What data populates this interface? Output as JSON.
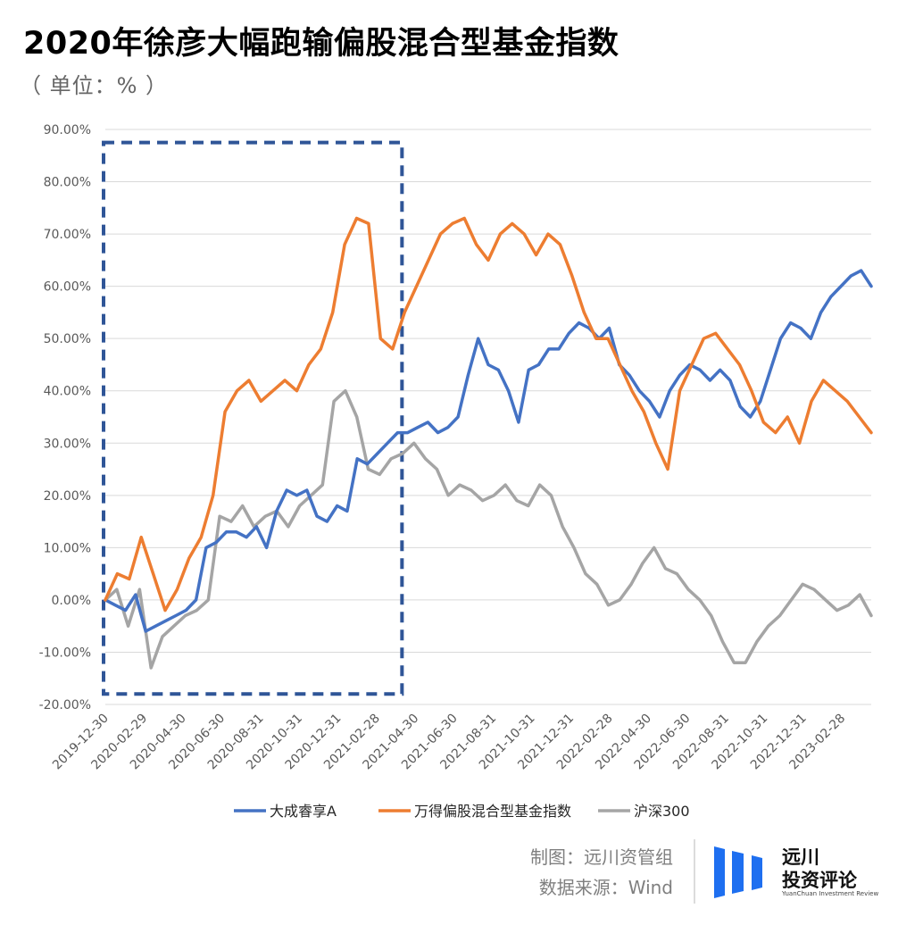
{
  "chart_data": {
    "type": "line",
    "title": "2020年徐彦大幅跑输偏股混合型基金指数",
    "unit_label": "（ 单位：% ）",
    "ylim": [
      -20,
      90
    ],
    "y_ticks": [
      "90.00%",
      "80.00%",
      "70.00%",
      "60.00%",
      "50.00%",
      "40.00%",
      "30.00%",
      "20.00%",
      "10.00%",
      "0.00%",
      "-10.00%",
      "-20.00%"
    ],
    "x_ticks": [
      "2019-12-30",
      "2020-02-29",
      "2020-04-30",
      "2020-06-30",
      "2020-08-31",
      "2020-10-31",
      "2020-12-31",
      "2021-02-28",
      "2021-04-30",
      "2021-06-30",
      "2021-08-31",
      "2021-10-31",
      "2021-12-31",
      "2022-02-28",
      "2022-04-30",
      "2022-06-30",
      "2022-08-31",
      "2022-10-31",
      "2022-12-31",
      "2023-02-28"
    ],
    "highlight_range": [
      "2019-12-30",
      "2021-02-28"
    ],
    "series": [
      {
        "name": "大成睿享A",
        "color": "#4472C4",
        "values": [
          0,
          -1,
          -2,
          1,
          -6,
          -5,
          -4,
          -3,
          -2,
          0,
          10,
          11,
          13,
          13,
          12,
          14,
          10,
          17,
          21,
          20,
          21,
          16,
          15,
          18,
          17,
          27,
          26,
          28,
          30,
          32,
          32,
          33,
          34,
          32,
          33,
          35,
          43,
          50,
          45,
          44,
          40,
          34,
          44,
          45,
          48,
          48,
          51,
          53,
          52,
          50,
          52,
          45,
          43,
          40,
          38,
          35,
          40,
          43,
          45,
          44,
          42,
          44,
          42,
          37,
          35,
          38,
          44,
          50,
          53,
          52,
          50,
          55,
          58,
          60,
          62,
          63,
          60
        ]
      },
      {
        "name": "万得偏股混合型基金指数",
        "color": "#ED7D31",
        "values": [
          0,
          5,
          4,
          12,
          5,
          -2,
          2,
          8,
          12,
          20,
          36,
          40,
          42,
          38,
          40,
          42,
          40,
          45,
          48,
          55,
          68,
          73,
          72,
          50,
          48,
          55,
          60,
          65,
          70,
          72,
          73,
          68,
          65,
          70,
          72,
          70,
          66,
          70,
          68,
          62,
          55,
          50,
          50,
          45,
          40,
          36,
          30,
          25,
          40,
          45,
          50,
          51,
          48,
          45,
          40,
          34,
          32,
          35,
          30,
          38,
          42,
          40,
          38,
          35,
          32
        ]
      },
      {
        "name": "沪深300",
        "color": "#A5A5A5",
        "values": [
          0,
          2,
          -5,
          2,
          -13,
          -7,
          -5,
          -3,
          -2,
          0,
          16,
          15,
          18,
          14,
          16,
          17,
          14,
          18,
          20,
          22,
          38,
          40,
          35,
          25,
          24,
          27,
          28,
          30,
          27,
          25,
          20,
          22,
          21,
          19,
          20,
          22,
          19,
          18,
          22,
          20,
          14,
          10,
          5,
          3,
          -1,
          0,
          3,
          7,
          10,
          6,
          5,
          2,
          0,
          -3,
          -8,
          -12,
          -12,
          -8,
          -5,
          -3,
          0,
          3,
          2,
          0,
          -2,
          -1,
          1,
          -3
        ]
      }
    ]
  },
  "credits": {
    "maker": "制图：远川资管组",
    "source": "数据来源：Wind"
  },
  "logo": {
    "line1": "远川",
    "line2": "投资评论",
    "subtitle": "YuanChuan Investment Review",
    "color": "#1E6FF0"
  }
}
